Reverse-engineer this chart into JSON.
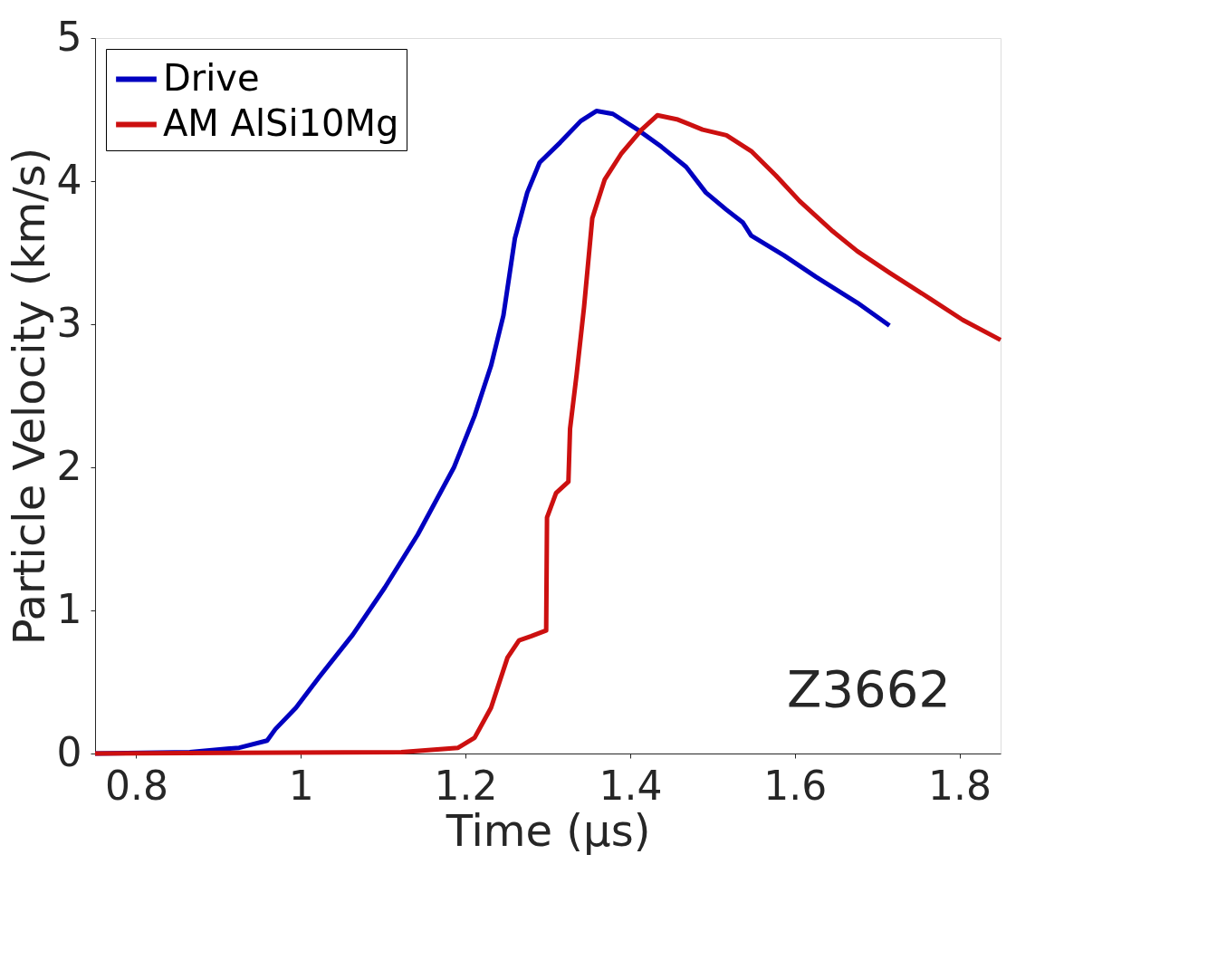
{
  "chart_data": {
    "type": "line",
    "xlabel": "Time (μs)",
    "ylabel": "Particle Velocity (km/s)",
    "xlim": [
      0.75,
      1.85
    ],
    "xticks": [
      0.8,
      1,
      1.2,
      1.4,
      1.6,
      1.8
    ],
    "ylim": [
      0,
      5
    ],
    "yticks": [
      0,
      1,
      2,
      3,
      4,
      5
    ],
    "grid": false,
    "legend": "top left",
    "line_style": "solid",
    "marker": "none",
    "annotations": [
      "Z3662"
    ],
    "series": [
      {
        "name": "Drive",
        "color": "#0000c0",
        "x": [
          0.75,
          0.865,
          0.925,
          0.959,
          0.969,
          0.994,
          1.023,
          1.063,
          1.102,
          1.142,
          1.186,
          1.211,
          1.231,
          1.246,
          1.26,
          1.275,
          1.29,
          1.315,
          1.34,
          1.359,
          1.379,
          1.409,
          1.438,
          1.468,
          1.492,
          1.517,
          1.537,
          1.547,
          1.587,
          1.626,
          1.676,
          1.715
        ],
        "values": [
          0,
          0.01,
          0.04,
          0.09,
          0.17,
          0.32,
          0.54,
          0.83,
          1.16,
          1.53,
          2.0,
          2.36,
          2.71,
          3.06,
          3.6,
          3.92,
          4.13,
          4.27,
          4.42,
          4.49,
          4.47,
          4.36,
          4.24,
          4.1,
          3.92,
          3.8,
          3.71,
          3.62,
          3.48,
          3.33,
          3.15,
          2.99
        ]
      },
      {
        "name": "AM AlSi10Mg",
        "color": "#cc1010",
        "x": [
          0.75,
          1.122,
          1.191,
          1.211,
          1.231,
          1.251,
          1.265,
          1.28,
          1.298,
          1.299,
          1.31,
          1.325,
          1.327,
          1.335,
          1.344,
          1.354,
          1.369,
          1.389,
          1.414,
          1.433,
          1.458,
          1.488,
          1.517,
          1.547,
          1.577,
          1.606,
          1.646,
          1.676,
          1.715,
          1.764,
          1.804,
          1.85
        ],
        "values": [
          0,
          0.01,
          0.04,
          0.11,
          0.32,
          0.67,
          0.79,
          0.82,
          0.86,
          1.65,
          1.82,
          1.9,
          2.27,
          2.65,
          3.12,
          3.74,
          4.01,
          4.19,
          4.36,
          4.46,
          4.43,
          4.36,
          4.32,
          4.21,
          4.04,
          3.86,
          3.65,
          3.51,
          3.36,
          3.18,
          3.03,
          2.89
        ]
      }
    ]
  }
}
